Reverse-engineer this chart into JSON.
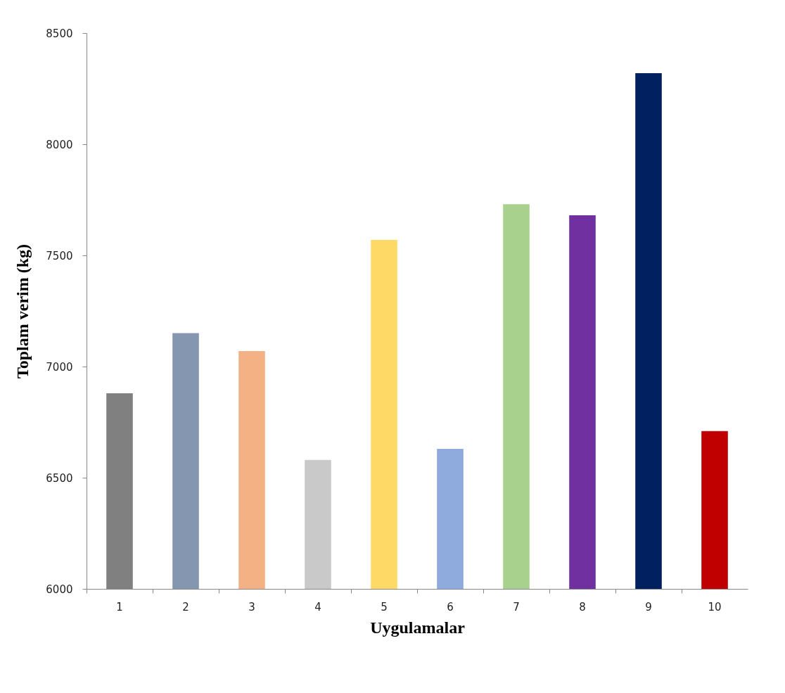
{
  "chart_data": {
    "type": "bar",
    "xlabel": "Uygulamalar",
    "ylabel": "Toplam verim (kg)",
    "categories": [
      "1",
      "2",
      "3",
      "4",
      "5",
      "6",
      "7",
      "8",
      "9",
      "10"
    ],
    "values": [
      6880,
      7150,
      7070,
      6580,
      7570,
      6630,
      7730,
      7680,
      8320,
      6710
    ],
    "colors": [
      "#808080",
      "#8496b0",
      "#f4b183",
      "#c9c9c9",
      "#ffd966",
      "#8faadc",
      "#a9d18e",
      "#7030a0",
      "#002060",
      "#c00000"
    ],
    "ylim": [
      6000,
      8500
    ],
    "yticks": [
      6000,
      6500,
      7000,
      7500,
      8000,
      8500
    ],
    "grid": false,
    "legend": false
  }
}
